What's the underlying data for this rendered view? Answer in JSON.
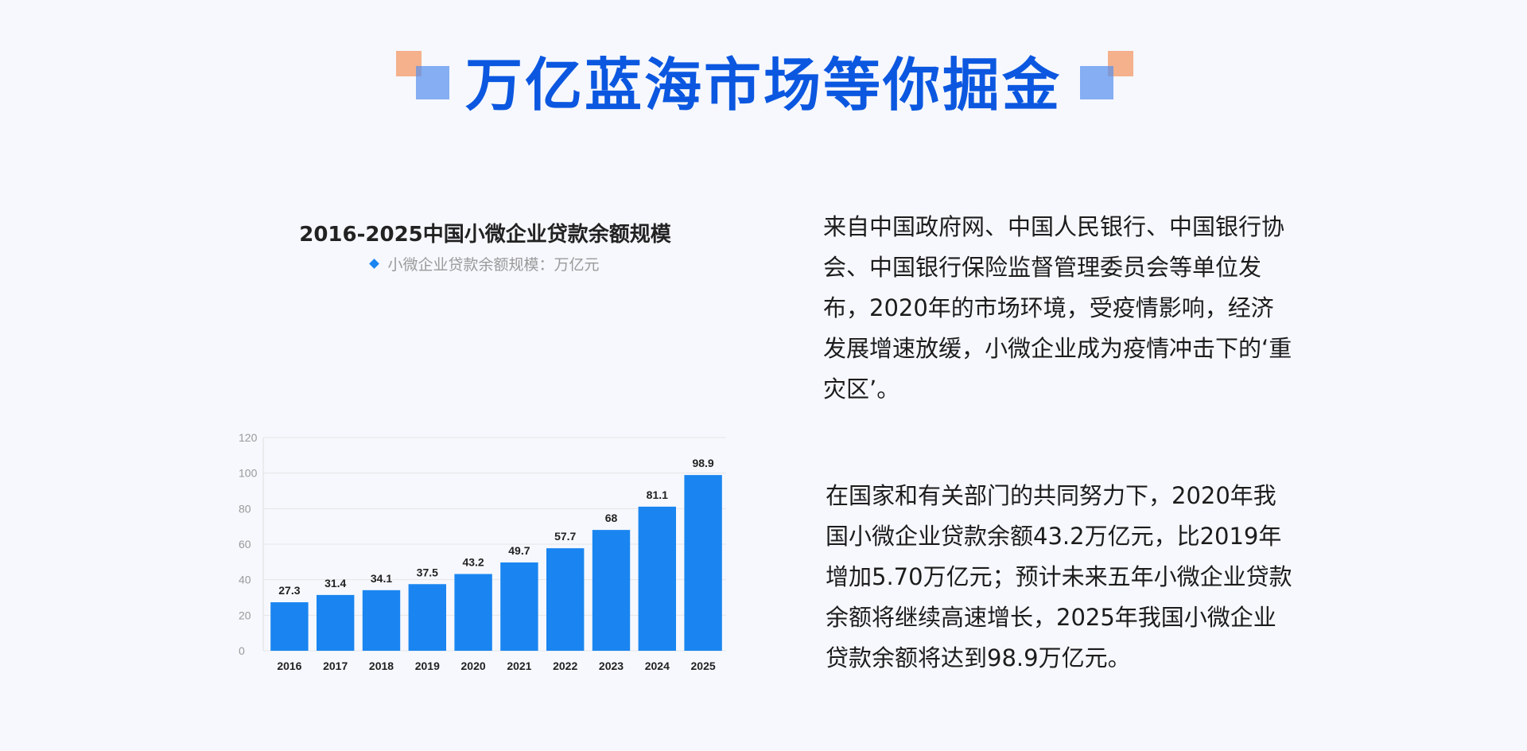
{
  "page": {
    "title": "万亿蓝海市场等你掘金",
    "colors": {
      "title": "#0b57e0",
      "bar": "#1a85f0",
      "accent_orange": "#f3a478",
      "accent_blue": "#568eee"
    }
  },
  "chart_data": {
    "type": "bar",
    "title": "2016-2025中国小微企业贷款余额规模",
    "legend": "小微企业贷款余额规模：万亿元",
    "categories": [
      "2016",
      "2017",
      "2018",
      "2019",
      "2020",
      "2021",
      "2022",
      "2023",
      "2024",
      "2025"
    ],
    "values": [
      27.3,
      31.4,
      34.1,
      37.5,
      43.2,
      49.7,
      57.7,
      68,
      81.1,
      98.9
    ],
    "yticks": [
      0,
      20,
      40,
      60,
      80,
      100,
      120
    ],
    "ylim": [
      0,
      120
    ],
    "grid": true,
    "legend_position": "top-center"
  },
  "text": {
    "para1": "来自中国政府网、中国人民银行、中国银行协会、中国银行保险监督管理委员会等单位发布，2020年的市场环境，受疫情影响，经济发展增速放缓，小微企业成为疫情冲击下的‘重灾区’。",
    "para2": "在国家和有关部门的共同努力下，2020年我国小微企业贷款余额43.2万亿元，比2019年增加5.70万亿元；预计未来五年小微企业贷款余额将继续高速增长，2025年我国小微企业贷款余额将达到98.9万亿元。"
  }
}
